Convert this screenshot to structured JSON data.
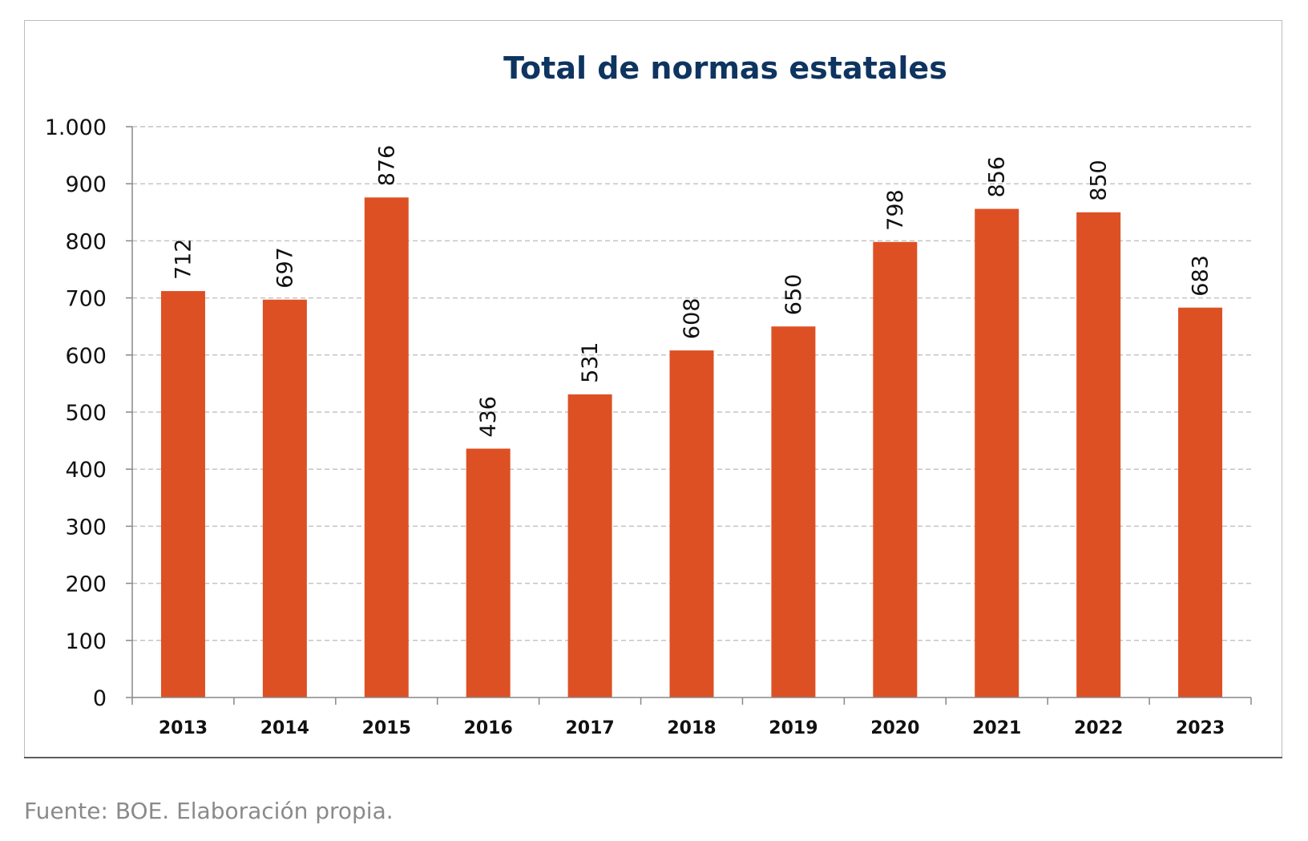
{
  "chart_data": {
    "type": "bar",
    "title": "Total de normas estatales",
    "categories": [
      "2013",
      "2014",
      "2015",
      "2016",
      "2017",
      "2018",
      "2019",
      "2020",
      "2021",
      "2022",
      "2023"
    ],
    "values": [
      712,
      697,
      876,
      436,
      531,
      608,
      650,
      798,
      856,
      850,
      683
    ],
    "data_labels": [
      "712",
      "697",
      "876",
      "436",
      "531",
      "608",
      "650",
      "798",
      "856",
      "850",
      "683"
    ],
    "xlabel": "",
    "ylabel": "",
    "ylim": [
      0,
      1000
    ],
    "yticks": [
      0,
      100,
      200,
      300,
      400,
      500,
      600,
      700,
      800,
      900,
      1000
    ],
    "ytick_labels": [
      "0",
      "100",
      "200",
      "300",
      "400",
      "500",
      "600",
      "700",
      "800",
      "900",
      "1.000"
    ],
    "grid": "horizontal dashed",
    "legend": "none",
    "bar_color": "#DD5024",
    "title_color": "#0E3460"
  },
  "source_note": "Fuente: BOE. Elaboración propia."
}
